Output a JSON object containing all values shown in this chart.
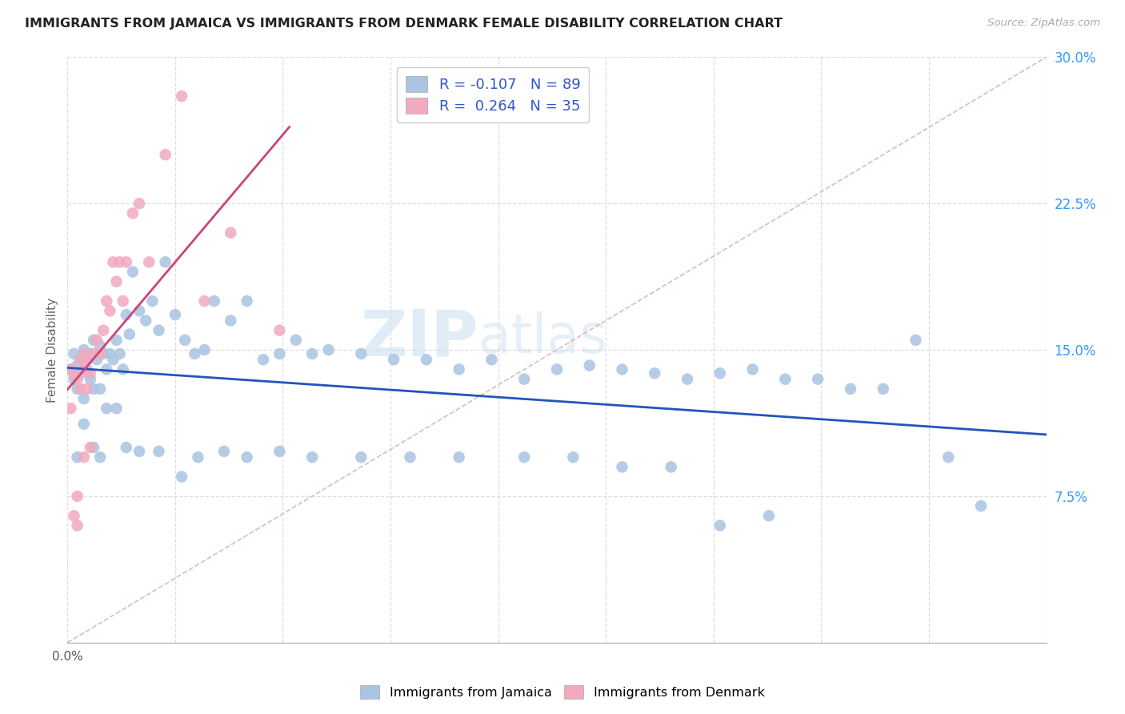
{
  "title": "IMMIGRANTS FROM JAMAICA VS IMMIGRANTS FROM DENMARK FEMALE DISABILITY CORRELATION CHART",
  "source": "Source: ZipAtlas.com",
  "ylabel": "Female Disability",
  "xlim": [
    0.0,
    0.3
  ],
  "ylim": [
    0.0,
    0.3
  ],
  "x_ticks": [
    0.0,
    0.033,
    0.066,
    0.099,
    0.132,
    0.165,
    0.198,
    0.231,
    0.264,
    0.3
  ],
  "y_ticks_right": [
    0.075,
    0.15,
    0.225,
    0.3
  ],
  "y_tick_labels_right": [
    "7.5%",
    "15.0%",
    "22.5%",
    "30.0%"
  ],
  "jamaica_color": "#aac4e2",
  "denmark_color": "#f2aabf",
  "jamaica_line_color": "#2255bb",
  "denmark_line_color": "#cc4477",
  "diagonal_color": "#ddbbbb",
  "jamaica_R": -0.107,
  "jamaica_N": 89,
  "denmark_R": 0.264,
  "denmark_N": 35,
  "legend_label_jamaica": "Immigrants from Jamaica",
  "legend_label_denmark": "Immigrants from Denmark",
  "watermark": "ZIPatlas",
  "watermark_color": "#cce0f0",
  "jamaica_scatter_x": [
    0.001,
    0.002,
    0.002,
    0.003,
    0.003,
    0.004,
    0.004,
    0.005,
    0.005,
    0.006,
    0.006,
    0.007,
    0.007,
    0.008,
    0.008,
    0.009,
    0.01,
    0.01,
    0.011,
    0.012,
    0.013,
    0.014,
    0.015,
    0.016,
    0.017,
    0.018,
    0.019,
    0.02,
    0.022,
    0.024,
    0.026,
    0.028,
    0.03,
    0.033,
    0.036,
    0.039,
    0.042,
    0.045,
    0.05,
    0.055,
    0.06,
    0.065,
    0.07,
    0.075,
    0.08,
    0.09,
    0.1,
    0.11,
    0.12,
    0.13,
    0.14,
    0.15,
    0.16,
    0.17,
    0.18,
    0.19,
    0.2,
    0.21,
    0.22,
    0.23,
    0.24,
    0.25,
    0.26,
    0.27,
    0.28,
    0.003,
    0.005,
    0.008,
    0.01,
    0.012,
    0.015,
    0.018,
    0.022,
    0.028,
    0.035,
    0.04,
    0.048,
    0.055,
    0.065,
    0.075,
    0.09,
    0.105,
    0.12,
    0.14,
    0.155,
    0.17,
    0.185,
    0.2,
    0.215
  ],
  "jamaica_scatter_y": [
    0.14,
    0.135,
    0.148,
    0.142,
    0.13,
    0.145,
    0.138,
    0.15,
    0.125,
    0.145,
    0.14,
    0.148,
    0.135,
    0.155,
    0.13,
    0.145,
    0.152,
    0.13,
    0.148,
    0.14,
    0.148,
    0.145,
    0.155,
    0.148,
    0.14,
    0.168,
    0.158,
    0.19,
    0.17,
    0.165,
    0.175,
    0.16,
    0.195,
    0.168,
    0.155,
    0.148,
    0.15,
    0.175,
    0.165,
    0.175,
    0.145,
    0.148,
    0.155,
    0.148,
    0.15,
    0.148,
    0.145,
    0.145,
    0.14,
    0.145,
    0.135,
    0.14,
    0.142,
    0.14,
    0.138,
    0.135,
    0.138,
    0.14,
    0.135,
    0.135,
    0.13,
    0.13,
    0.155,
    0.095,
    0.07,
    0.095,
    0.112,
    0.1,
    0.095,
    0.12,
    0.12,
    0.1,
    0.098,
    0.098,
    0.085,
    0.095,
    0.098,
    0.095,
    0.098,
    0.095,
    0.095,
    0.095,
    0.095,
    0.095,
    0.095,
    0.09,
    0.09,
    0.06,
    0.065
  ],
  "denmark_scatter_x": [
    0.001,
    0.001,
    0.002,
    0.002,
    0.003,
    0.003,
    0.003,
    0.004,
    0.004,
    0.005,
    0.005,
    0.005,
    0.006,
    0.006,
    0.007,
    0.007,
    0.008,
    0.009,
    0.01,
    0.011,
    0.012,
    0.013,
    0.014,
    0.015,
    0.016,
    0.017,
    0.018,
    0.02,
    0.022,
    0.025,
    0.03,
    0.035,
    0.042,
    0.05,
    0.065
  ],
  "denmark_scatter_y": [
    0.14,
    0.12,
    0.138,
    0.065,
    0.135,
    0.075,
    0.06,
    0.145,
    0.13,
    0.148,
    0.14,
    0.095,
    0.145,
    0.13,
    0.138,
    0.1,
    0.148,
    0.155,
    0.148,
    0.16,
    0.175,
    0.17,
    0.195,
    0.185,
    0.195,
    0.175,
    0.195,
    0.22,
    0.225,
    0.195,
    0.25,
    0.28,
    0.175,
    0.21,
    0.16
  ]
}
